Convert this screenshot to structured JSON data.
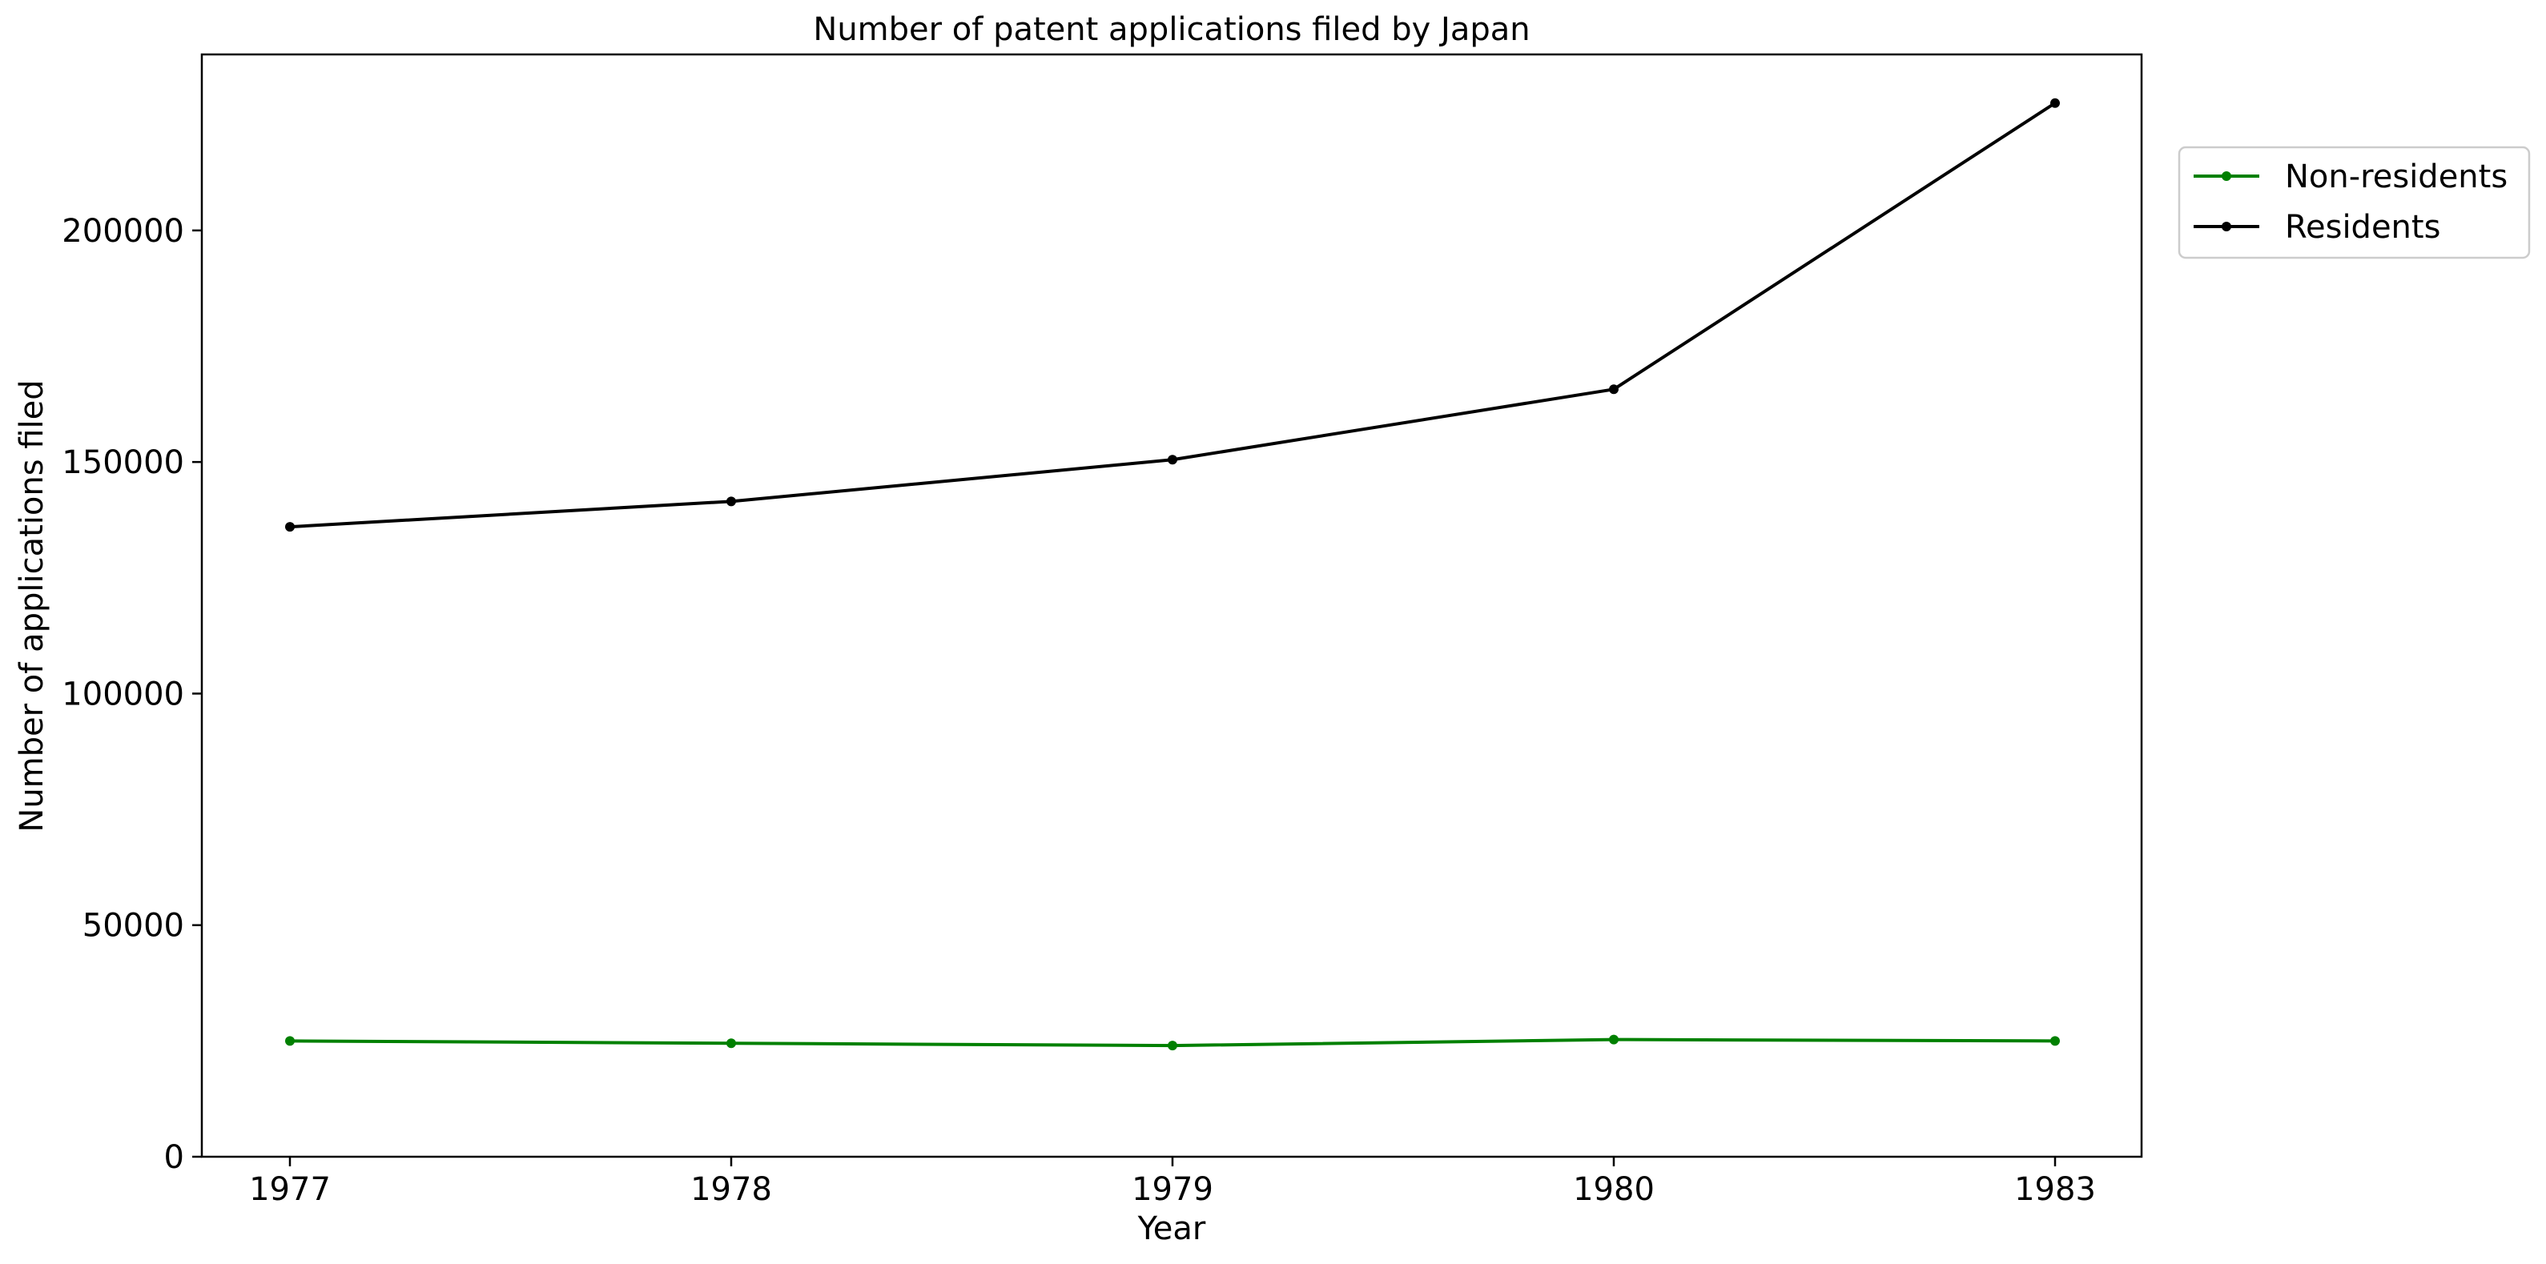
{
  "chart_data": {
    "type": "line",
    "title": "Number of patent applications filed by Japan",
    "xlabel": "Year",
    "ylabel": "Number of applications filed",
    "categories": [
      "1977",
      "1978",
      "1979",
      "1980",
      "1983"
    ],
    "yticks": [
      0,
      50000,
      100000,
      150000,
      200000
    ],
    "ylim": [
      0,
      238000
    ],
    "grid": false,
    "legend_position": "upper right, outside plot",
    "series": [
      {
        "name": "Non-residents",
        "color": "#008000",
        "values": [
          25000,
          24500,
          24000,
          25300,
          25000
        ]
      },
      {
        "name": "Residents",
        "color": "#000000",
        "values": [
          136000,
          141500,
          150500,
          165700,
          227500
        ]
      }
    ]
  }
}
